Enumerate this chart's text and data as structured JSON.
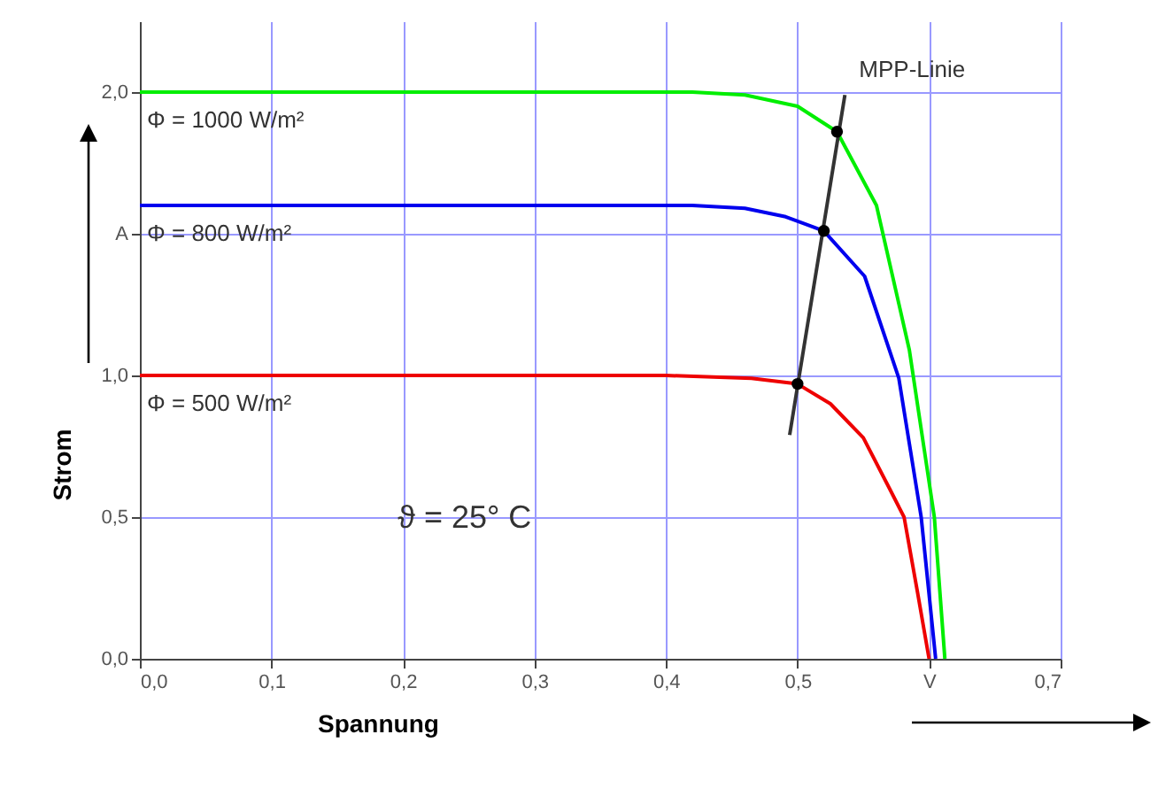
{
  "chart_data": {
    "type": "line",
    "xlabel": "Spannung",
    "ylabel": "Strom",
    "xlim": [
      0,
      0.7
    ],
    "ylim": [
      0,
      2.25
    ],
    "xticks": [
      {
        "value": 0,
        "label": "0,0"
      },
      {
        "value": 0.1,
        "label": "0,1"
      },
      {
        "value": 0.2,
        "label": "0,2"
      },
      {
        "value": 0.3,
        "label": "0,3"
      },
      {
        "value": 0.4,
        "label": "0,4"
      },
      {
        "value": 0.5,
        "label": "0,5"
      },
      {
        "value": 0.6,
        "label": "V"
      },
      {
        "value": 0.7,
        "label": "0,7"
      }
    ],
    "yticks": [
      {
        "value": 0,
        "label": "0,0"
      },
      {
        "value": 0.5,
        "label": "0,5"
      },
      {
        "value": 1,
        "label": "1,0"
      },
      {
        "value": 1.5,
        "label": "A"
      },
      {
        "value": 2,
        "label": "2,0"
      }
    ],
    "grid": true,
    "annotations": [
      "ϑ = 25° C"
    ],
    "series": [
      {
        "name": "Φ = 1000 W/m²",
        "color": "#00ee00",
        "x": [
          0,
          0.3,
          0.42,
          0.46,
          0.5,
          0.53,
          0.56,
          0.585,
          0.604,
          0.612
        ],
        "values": [
          2.0,
          2.0,
          2.0,
          1.99,
          1.95,
          1.86,
          1.6,
          1.09,
          0.5,
          0
        ]
      },
      {
        "name": "Φ = 800 W/m²",
        "color": "#0000ee",
        "x": [
          0,
          0.3,
          0.42,
          0.46,
          0.491,
          0.52,
          0.551,
          0.577,
          0.594,
          0.605
        ],
        "values": [
          1.6,
          1.6,
          1.6,
          1.59,
          1.56,
          1.51,
          1.35,
          0.99,
          0.5,
          0
        ]
      },
      {
        "name": "Φ = 500 W/m²",
        "color": "#ee0000",
        "x": [
          0,
          0.3,
          0.4,
          0.465,
          0.5,
          0.525,
          0.55,
          0.57,
          0.581,
          0.591,
          0.6
        ],
        "values": [
          1.0,
          1.0,
          1.0,
          0.99,
          0.97,
          0.9,
          0.78,
          0.6,
          0.5,
          0.24,
          0
        ]
      },
      {
        "name": "MPP-Linie",
        "color": "#333333",
        "x": [
          0.494,
          0.536
        ],
        "values": [
          0.79,
          1.99
        ]
      },
      {
        "color": "#000000",
        "type": "scatter",
        "marker": "circle",
        "x": [
          0.53,
          0.52,
          0.5
        ],
        "values": [
          1.86,
          1.51,
          0.97
        ]
      }
    ]
  }
}
